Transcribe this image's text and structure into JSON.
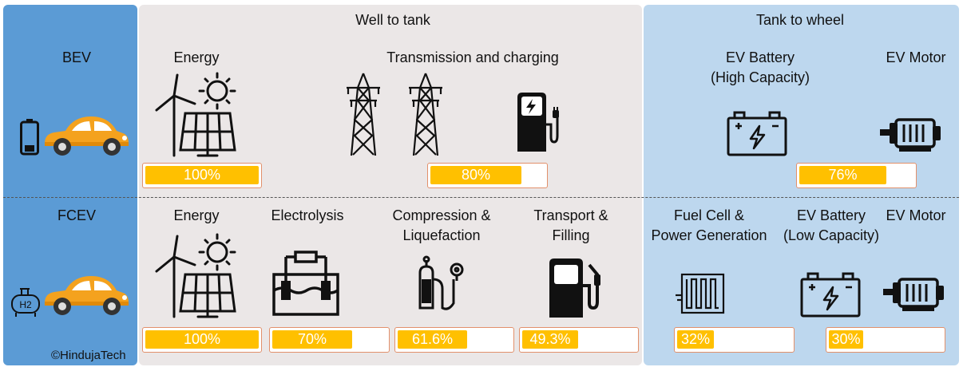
{
  "headers": {
    "well_to_tank": "Well to tank",
    "tank_to_wheel": "Tank to wheel"
  },
  "rows": {
    "bev": "BEV",
    "fcev": "FCEV"
  },
  "bev": {
    "energy": "Energy",
    "transmission": "Transmission and charging",
    "battery_line1": "EV Battery",
    "battery_line2": "(High Capacity)",
    "motor": "EV Motor",
    "pct_energy": "100%",
    "pct_transmission": "80%",
    "pct_battery": "76%"
  },
  "fcev": {
    "energy": "Energy",
    "electrolysis": "Electrolysis",
    "compression_line1": "Compression &",
    "compression_line2": "Liquefaction",
    "transport_line1": "Transport &",
    "transport_line2": "Filling",
    "fuelcell_line1": "Fuel Cell &",
    "fuelcell_line2": "Power Generation",
    "battery_line1": "EV Battery",
    "battery_line2": "(Low Capacity)",
    "motor": "EV Motor",
    "h2": "H2",
    "pct_energy": "100%",
    "pct_electrolysis": "70%",
    "pct_compression": "61.6%",
    "pct_transport": "49.3%",
    "pct_fuelcell": "32%",
    "pct_battery": "30%"
  },
  "efficiency": {
    "bev_energy": 100,
    "bev_transmission": 80,
    "bev_battery": 76,
    "fcev_energy": 100,
    "fcev_electrolysis": 70,
    "fcev_compression": 61.6,
    "fcev_transport": 49.3,
    "fcev_fuelcell": 32,
    "fcev_battery": 30
  },
  "copyright": "©HindujaTech",
  "colors": {
    "bar_fill": "#ffc000",
    "bar_border": "#e2906b",
    "left_panel": "#5b9bd5",
    "right_panel": "#bdd7ee",
    "mid_panel": "#ebe7e7",
    "car": "#f4a21e"
  }
}
